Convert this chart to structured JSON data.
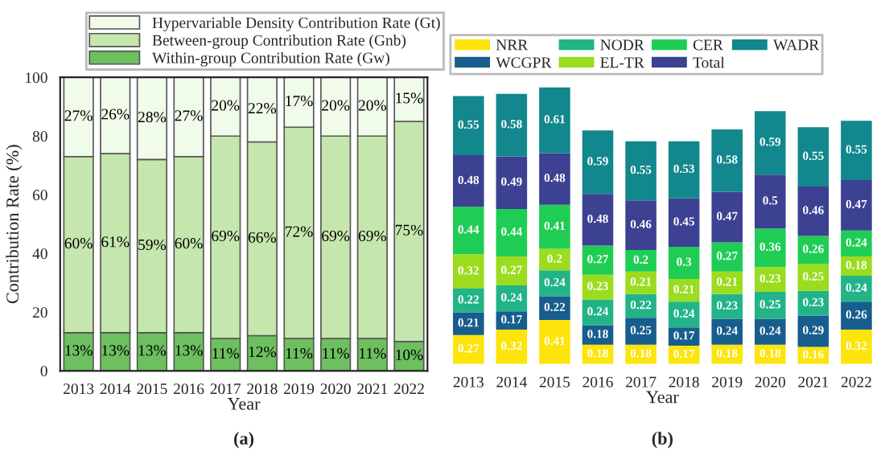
{
  "chart_data": [
    {
      "type": "bar",
      "stacked": true,
      "xlabel": "Year",
      "ylabel": "Contribution Rate (%)",
      "categories": [
        "2013",
        "2014",
        "2015",
        "2016",
        "2017",
        "2018",
        "2019",
        "2020",
        "2021",
        "2022"
      ],
      "series": [
        {
          "name": "Within-group Contribution Rate (Gw)",
          "color": "#6dbf5f",
          "values": [
            13,
            13,
            13,
            13,
            11,
            12,
            11,
            11,
            11,
            10
          ],
          "value_labels": [
            "13%",
            "13%",
            "13%",
            "13%",
            "11%",
            "12%",
            "11%",
            "11%",
            "11%",
            "10%"
          ]
        },
        {
          "name": "Between-group Contribution Rate (Gnb)",
          "color": "#c5e6ad",
          "values": [
            60,
            61,
            59,
            60,
            69,
            66,
            72,
            69,
            69,
            75
          ],
          "value_labels": [
            "60%",
            "61%",
            "59%",
            "60%",
            "69%",
            "66%",
            "72%",
            "69%",
            "69%",
            "75%"
          ]
        },
        {
          "name": "Hypervariable Density Contribution Rate (Gt)",
          "color": "#f1fbea",
          "values": [
            27,
            26,
            28,
            27,
            20,
            22,
            17,
            20,
            20,
            15
          ],
          "value_labels": [
            "27%",
            "26%",
            "28%",
            "27%",
            "20%",
            "22%",
            "17%",
            "20%",
            "20%",
            "15%"
          ]
        }
      ],
      "ylim": [
        0,
        100
      ],
      "yticks": [
        0,
        20,
        40,
        60,
        80,
        100
      ],
      "grid": false,
      "legend": "top",
      "annotations": [
        "(a)"
      ]
    },
    {
      "type": "bar",
      "stacked": true,
      "data_labels": true,
      "xlabel": "Year",
      "categories": [
        "2013",
        "2014",
        "2015",
        "2016",
        "2017",
        "2018",
        "2019",
        "2020",
        "2021",
        "2022"
      ],
      "series": [
        {
          "name": "NRR",
          "color": "#fde40a",
          "values": [
            0.27,
            0.32,
            0.41,
            0.18,
            0.18,
            0.17,
            0.18,
            0.18,
            0.16,
            0.32
          ]
        },
        {
          "name": "WCGPR",
          "color": "#175d8d",
          "values": [
            0.21,
            0.17,
            0.22,
            0.18,
            0.25,
            0.17,
            0.24,
            0.24,
            0.29,
            0.26
          ]
        },
        {
          "name": "NODR",
          "color": "#22b487",
          "values": [
            0.22,
            0.24,
            0.24,
            0.24,
            0.22,
            0.24,
            0.23,
            0.25,
            0.23,
            0.24
          ]
        },
        {
          "name": "EL-TR",
          "color": "#9bdc1f",
          "values": [
            0.32,
            0.27,
            0.2,
            0.23,
            0.21,
            0.21,
            0.21,
            0.23,
            0.25,
            0.18
          ]
        },
        {
          "name": "CER",
          "color": "#1fcd55",
          "values": [
            0.44,
            0.44,
            0.41,
            0.27,
            0.2,
            0.3,
            0.27,
            0.36,
            0.26,
            0.24
          ]
        },
        {
          "name": "Total",
          "color": "#3c4192",
          "values": [
            0.48,
            0.49,
            0.48,
            0.48,
            0.46,
            0.45,
            0.47,
            0.5,
            0.46,
            0.47
          ]
        },
        {
          "name": "WADR",
          "color": "#12878d",
          "values": [
            0.55,
            0.58,
            0.61,
            0.59,
            0.55,
            0.53,
            0.58,
            0.59,
            0.55,
            0.55
          ]
        }
      ],
      "grid": false,
      "legend": "top left",
      "tick_labels": "x",
      "annotations": [
        "(b)"
      ]
    }
  ]
}
